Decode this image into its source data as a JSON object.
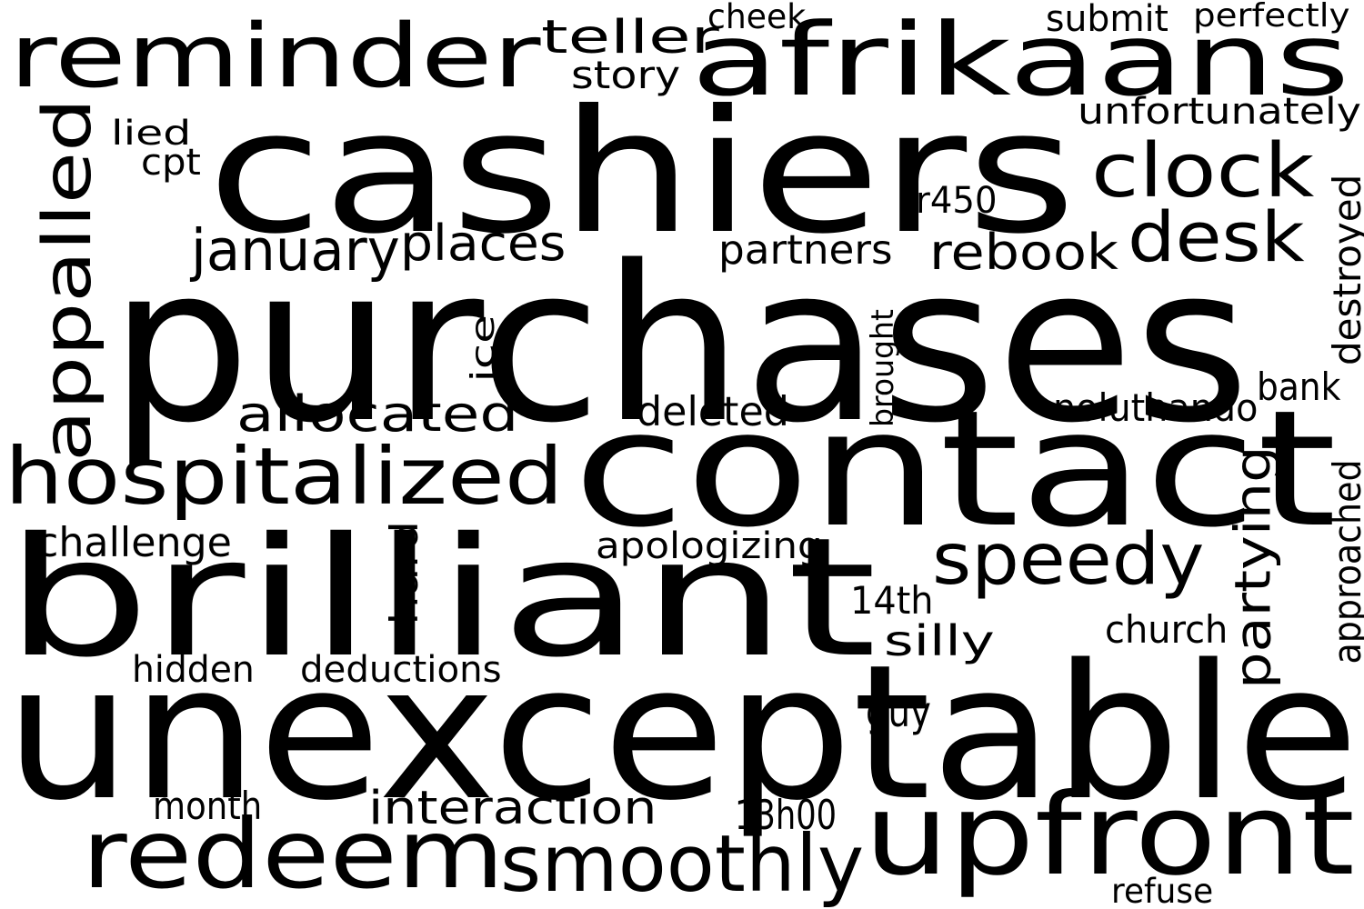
{
  "colors": {
    "text": "#000000",
    "background": "#ffffff"
  },
  "words": [
    {
      "text": "purchases"
    },
    {
      "text": "unexceptable"
    },
    {
      "text": "cashiers"
    },
    {
      "text": "contact"
    },
    {
      "text": "brilliant"
    },
    {
      "text": "afrikaans"
    },
    {
      "text": "reminder"
    },
    {
      "text": "upfront"
    },
    {
      "text": "redeem"
    },
    {
      "text": "appalled"
    },
    {
      "text": "hospitalized"
    },
    {
      "text": "smoothly"
    },
    {
      "text": "speedy"
    },
    {
      "text": "clock"
    },
    {
      "text": "desk"
    },
    {
      "text": "partying"
    },
    {
      "text": "allocated"
    },
    {
      "text": "january"
    },
    {
      "text": "places"
    },
    {
      "text": "rebook"
    },
    {
      "text": "interaction"
    },
    {
      "text": "teller"
    },
    {
      "text": "unfortunately"
    },
    {
      "text": "destroyed"
    },
    {
      "text": "approached"
    },
    {
      "text": "hard"
    },
    {
      "text": "partners"
    },
    {
      "text": "deleted"
    },
    {
      "text": "noluthando"
    },
    {
      "text": "apologizing"
    },
    {
      "text": "challenge"
    },
    {
      "text": "deductions"
    },
    {
      "text": "hidden"
    },
    {
      "text": "month"
    },
    {
      "text": "story"
    },
    {
      "text": "cheek"
    },
    {
      "text": "submit"
    },
    {
      "text": "perfectly"
    },
    {
      "text": "lied"
    },
    {
      "text": "cpt"
    },
    {
      "text": "r450"
    },
    {
      "text": "ice"
    },
    {
      "text": "brought"
    },
    {
      "text": "bank"
    },
    {
      "text": "14th"
    },
    {
      "text": "silly"
    },
    {
      "text": "church"
    },
    {
      "text": "guy"
    },
    {
      "text": "13h00"
    },
    {
      "text": "refuse"
    }
  ]
}
